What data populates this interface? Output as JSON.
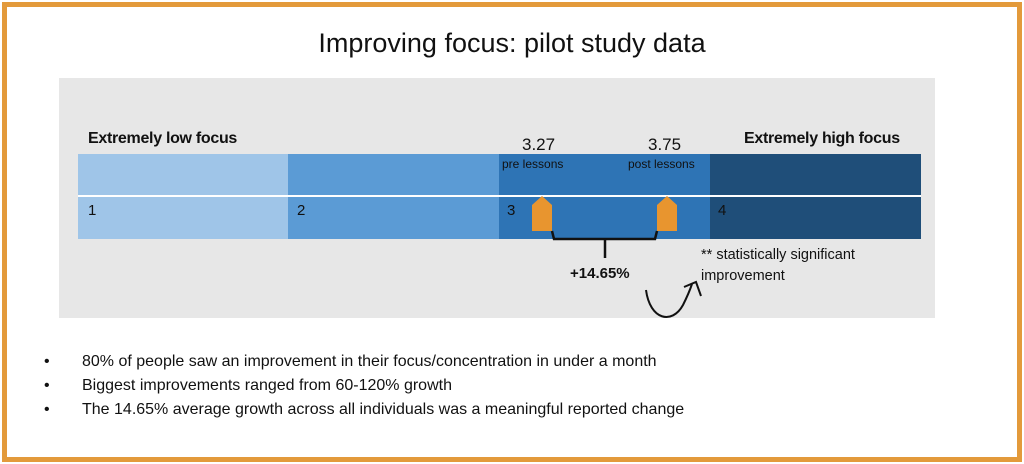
{
  "title": "Improving focus: pilot study data",
  "scale": {
    "low_label": "Extremely low focus",
    "high_label": "Extremely high focus",
    "segments": [
      {
        "label": "1",
        "color": "#9fc5e8"
      },
      {
        "label": "2",
        "color": "#5b9bd5"
      },
      {
        "label": "3",
        "color": "#2e74b5"
      },
      {
        "label": "4",
        "color": "#1f4e79"
      }
    ]
  },
  "pre": {
    "score": "3.27",
    "label": "pre lessons"
  },
  "post": {
    "score": "3.75",
    "label": "post lessons"
  },
  "change_label": "+14.65%",
  "note": "** statistically significant improvement",
  "marker_color": "#e8952f",
  "bullets": [
    "80% of people saw an improvement  in their focus/concentration in under a month",
    "Biggest improvements  ranged from 60-120% growth",
    "The 14.65% average growth across all individuals was a meaningful  reported change"
  ]
}
